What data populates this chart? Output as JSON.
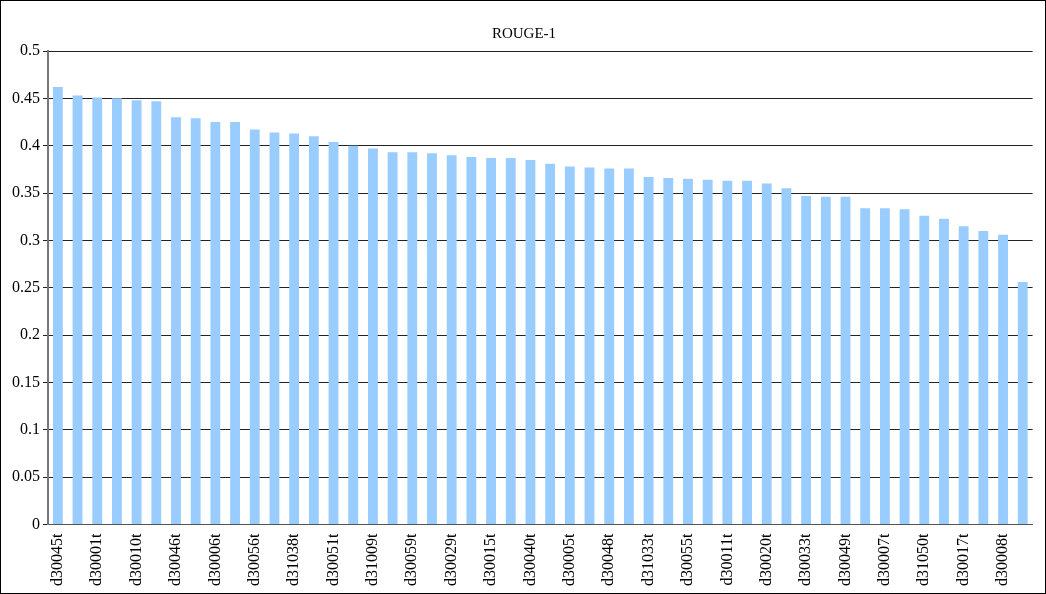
{
  "chart_data": {
    "type": "bar",
    "title": "ROUGE-1",
    "categories": [
      "d30045t",
      null,
      "d30001t",
      null,
      "d30010t",
      null,
      "d30046t",
      null,
      "d30006t",
      null,
      "d30056t",
      null,
      "d31038t",
      null,
      "d30051t",
      null,
      "d31009t",
      null,
      "d30059t",
      null,
      "d30029t",
      null,
      "d30015t",
      null,
      "d30040t",
      null,
      "d30005t",
      null,
      "d30048t",
      null,
      "d31033t",
      null,
      "d30055t",
      null,
      "d30011t",
      null,
      "d30020t",
      null,
      "d30033t",
      null,
      "d30049t",
      null,
      "d30007t",
      null,
      "d31050t",
      null,
      "d30017t",
      null,
      "d30008t",
      null
    ],
    "values": [
      0.462,
      0.453,
      0.451,
      0.45,
      0.448,
      0.447,
      0.43,
      0.429,
      0.425,
      0.425,
      0.417,
      0.414,
      0.413,
      0.41,
      0.404,
      0.4,
      0.397,
      0.393,
      0.393,
      0.392,
      0.39,
      0.388,
      0.387,
      0.387,
      0.385,
      0.381,
      0.378,
      0.377,
      0.376,
      0.376,
      0.367,
      0.366,
      0.365,
      0.364,
      0.363,
      0.363,
      0.36,
      0.355,
      0.347,
      0.346,
      0.346,
      0.334,
      0.334,
      0.333,
      0.326,
      0.323,
      0.315,
      0.31,
      0.306,
      0.256
    ],
    "color": "#99ccff",
    "ylim": [
      0,
      0.5
    ],
    "yticks": [
      0,
      0.05,
      0.1,
      0.15,
      0.2,
      0.25,
      0.3,
      0.35,
      0.4,
      0.45,
      0.5
    ],
    "grid": "y",
    "legend": false
  }
}
